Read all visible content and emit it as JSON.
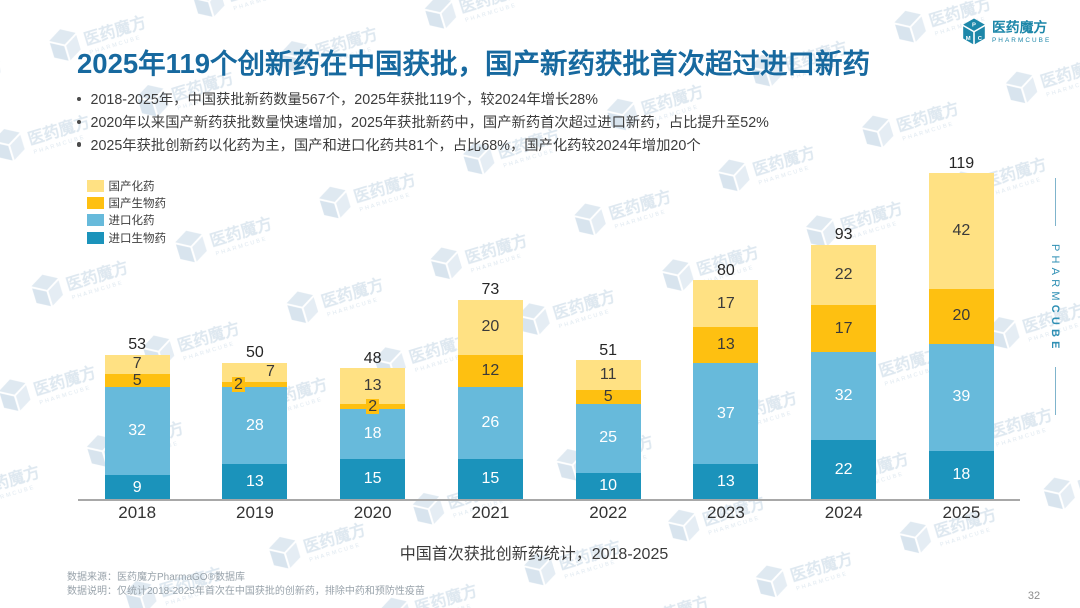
{
  "page": {
    "page_number": "32",
    "background": "#FFFFFF"
  },
  "header": {
    "title": "2025年119个创新药在中国获批，国产新药获批首次超过进口新药",
    "title_color": "#1669A8"
  },
  "logo": {
    "name_cn": "医药魔方",
    "name_en": "PHARMCUBE",
    "cube_letters": [
      "P",
      "M",
      "C"
    ],
    "color": "#1D87A9"
  },
  "side_tab": {
    "part_regular": "PHARM",
    "part_bold": "CUBE",
    "color": "#2E8FB4"
  },
  "bullets": [
    "2018-2025年，中国获批新药数量567个，2025年获批119个，较2024年增长28%",
    "2020年以来国产新药获批数量快速增加，2025年获批新药中，国产新药首次超过进口新药，占比提升至52%",
    "2025年获批创新药以化药为主，国产和进口化药共81个，占比68%，国产化药较2024年增加20个"
  ],
  "legend": [
    {
      "label": "国产化药",
      "color": "#FFE183"
    },
    {
      "label": "国产生物药",
      "color": "#FEC011"
    },
    {
      "label": "进口化药",
      "color": "#67BADB"
    },
    {
      "label": "进口生物药",
      "color": "#1B93BB"
    }
  ],
  "chart_data": {
    "type": "bar",
    "stacked": true,
    "title": "中国首次获批创新药统计，2018-2025",
    "categories": [
      "2018",
      "2019",
      "2020",
      "2021",
      "2022",
      "2023",
      "2024",
      "2025"
    ],
    "series": [
      {
        "name": "进口生物药",
        "color": "#1B93BB",
        "label_color": "#FFFFFF",
        "values": [
          9,
          13,
          15,
          15,
          10,
          13,
          22,
          18
        ]
      },
      {
        "name": "进口化药",
        "color": "#67BADB",
        "label_color": "#FFFFFF",
        "values": [
          32,
          28,
          18,
          26,
          25,
          37,
          32,
          39
        ]
      },
      {
        "name": "国产生物药",
        "color": "#FEC011",
        "label_color": "#3A3A3A",
        "values": [
          5,
          2,
          2,
          12,
          5,
          13,
          17,
          20
        ]
      },
      {
        "name": "国产化药",
        "color": "#FFE183",
        "label_color": "#3A3A3A",
        "values": [
          7,
          7,
          13,
          20,
          11,
          17,
          22,
          42
        ]
      }
    ],
    "totals": [
      53,
      50,
      48,
      73,
      51,
      80,
      93,
      119
    ],
    "xlabel": "",
    "ylabel": "",
    "ylim": [
      0,
      119
    ],
    "grid": false,
    "legend_position": "upper-left",
    "axis_color": "#A8A8A8"
  },
  "footnotes": {
    "source": "数据来源：医药魔方PharmaGO®数据库",
    "note": "数据说明：仅统计2018-2025年首次在中国获批的创新药，排除中药和预防性疫苗"
  },
  "watermark": {
    "text_cn": "医药魔方",
    "text_en": "PHARMCUBE",
    "color": "#2C84B5"
  }
}
